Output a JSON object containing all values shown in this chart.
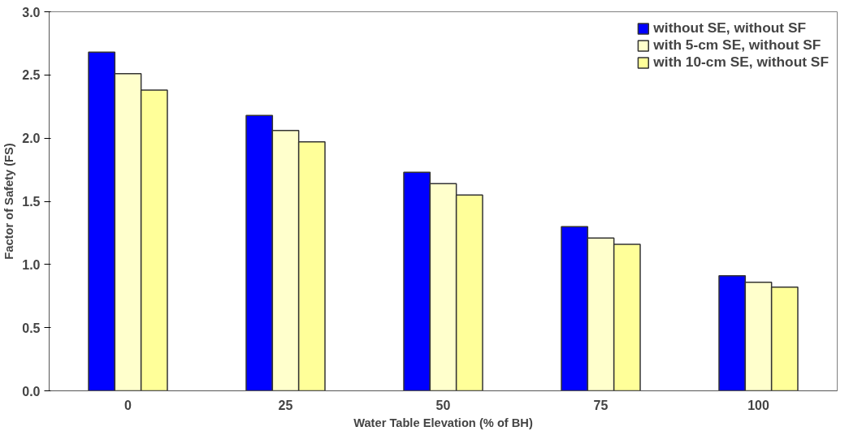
{
  "chart_data": {
    "type": "bar",
    "xlabel": "Water Table Elevation (% of BH)",
    "ylabel": "Factor of Safety (FS)",
    "categories": [
      "0",
      "25",
      "50",
      "75",
      "100"
    ],
    "series": [
      {
        "name": "without SE, without SF",
        "color": "#0000ff",
        "values": [
          2.68,
          2.18,
          1.73,
          1.3,
          0.91
        ]
      },
      {
        "name": "with 5-cm SE, without SF",
        "color": "#ffffcc",
        "values": [
          2.51,
          2.06,
          1.64,
          1.21,
          0.86
        ]
      },
      {
        "name": "with 10-cm SE, without SF",
        "color": "#ffff99",
        "values": [
          2.38,
          1.97,
          1.55,
          1.16,
          0.82
        ]
      }
    ],
    "ylim": [
      0,
      3.0
    ],
    "yticks": [
      {
        "value": 0,
        "label": "0.0"
      },
      {
        "value": 0.5,
        "label": "0.5"
      },
      {
        "value": 1,
        "label": "1.0"
      },
      {
        "value": 1.5,
        "label": "1.5"
      },
      {
        "value": 2,
        "label": "2.0"
      },
      {
        "value": 2.5,
        "label": "2.5"
      },
      {
        "value": 3,
        "label": "3.0"
      }
    ],
    "grid": false,
    "legend": "top right"
  }
}
